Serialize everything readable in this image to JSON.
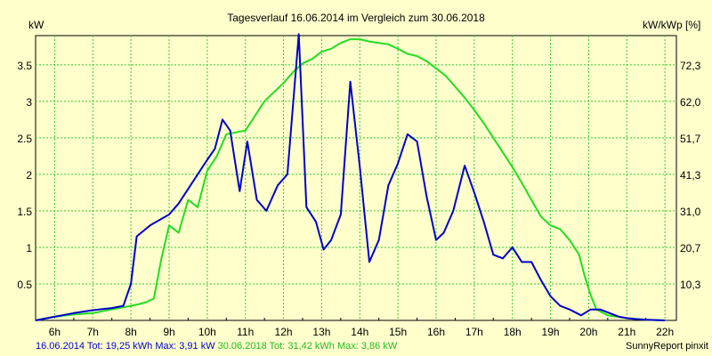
{
  "chart_data": {
    "type": "line",
    "title": "Tagesverlauf 16.06.2014 im Vergleich zum 30.06.2018",
    "ylabel_left": "kW",
    "ylabel_right": "kW/kWp [%]",
    "x_tick_labels": [
      "6h",
      "7h",
      "8h",
      "9h",
      "10h",
      "11h",
      "12h",
      "13h",
      "14h",
      "15h",
      "16h",
      "17h",
      "18h",
      "19h",
      "20h",
      "21h",
      "22h"
    ],
    "xlim": [
      5.5,
      22.3
    ],
    "ylim_left": [
      0,
      3.9
    ],
    "y_ticks_left": [
      0.5,
      1,
      1.5,
      2,
      2.5,
      3,
      3.5
    ],
    "y_tick_labels_left": [
      "0.5",
      "1",
      "1.5",
      "2",
      "2.5",
      "3",
      "3.5"
    ],
    "y_tick_labels_right": [
      "10,3",
      "20,7",
      "31,0",
      "41,3",
      "51,7",
      "62,0",
      "72,3"
    ],
    "grid": true,
    "colors": {
      "background": "#ffffcc",
      "grid": "#33cc33",
      "series_2014": "#0000cc",
      "series_2018": "#22dd22"
    },
    "series": [
      {
        "name": "16.06.2014",
        "x": [
          5.5,
          6.0,
          6.5,
          7.0,
          7.5,
          7.8,
          8.0,
          8.15,
          8.5,
          9.0,
          9.25,
          9.5,
          9.75,
          10.0,
          10.2,
          10.4,
          10.6,
          10.85,
          11.05,
          11.3,
          11.55,
          11.85,
          12.1,
          12.4,
          12.6,
          12.85,
          13.05,
          13.25,
          13.5,
          13.75,
          14.0,
          14.25,
          14.5,
          14.75,
          15.0,
          15.25,
          15.5,
          15.75,
          16.0,
          16.2,
          16.45,
          16.75,
          17.0,
          17.25,
          17.5,
          17.75,
          18.0,
          18.25,
          18.5,
          18.75,
          19.0,
          19.25,
          19.5,
          19.8,
          20.05,
          20.3,
          20.55,
          20.8,
          21.0,
          21.2,
          21.5,
          22.0
        ],
        "values": [
          0.0,
          0.05,
          0.1,
          0.14,
          0.17,
          0.2,
          0.5,
          1.15,
          1.3,
          1.45,
          1.6,
          1.8,
          2.0,
          2.2,
          2.35,
          2.75,
          2.6,
          1.77,
          2.45,
          1.65,
          1.5,
          1.85,
          2.0,
          3.92,
          1.55,
          1.35,
          0.97,
          1.1,
          1.45,
          3.27,
          2.1,
          0.8,
          1.1,
          1.85,
          2.15,
          2.55,
          2.45,
          1.7,
          1.1,
          1.2,
          1.5,
          2.12,
          1.75,
          1.35,
          0.9,
          0.85,
          1.0,
          0.8,
          0.8,
          0.55,
          0.33,
          0.2,
          0.15,
          0.07,
          0.15,
          0.15,
          0.1,
          0.05,
          0.03,
          0.02,
          0.01,
          0.0
        ]
      },
      {
        "name": "30.06.2018",
        "x": [
          5.5,
          6.0,
          6.5,
          7.0,
          7.5,
          8.0,
          8.2,
          8.4,
          8.6,
          8.8,
          9.0,
          9.25,
          9.5,
          9.75,
          10.0,
          10.25,
          10.5,
          11.0,
          11.5,
          12.0,
          12.25,
          12.5,
          12.75,
          13.0,
          13.25,
          13.5,
          13.75,
          14.0,
          14.25,
          14.5,
          14.75,
          15.0,
          15.25,
          15.5,
          15.75,
          16.0,
          16.25,
          16.5,
          16.75,
          17.0,
          17.25,
          17.5,
          17.75,
          18.0,
          18.25,
          18.5,
          18.75,
          19.0,
          19.25,
          19.5,
          19.75,
          19.9,
          20.05,
          20.2,
          20.5,
          21.0,
          21.5,
          22.0
        ],
        "values": [
          0.0,
          0.05,
          0.08,
          0.1,
          0.15,
          0.2,
          0.22,
          0.25,
          0.3,
          0.85,
          1.3,
          1.2,
          1.65,
          1.55,
          2.05,
          2.25,
          2.55,
          2.6,
          3.0,
          3.25,
          3.4,
          3.52,
          3.58,
          3.68,
          3.72,
          3.8,
          3.85,
          3.85,
          3.82,
          3.8,
          3.78,
          3.72,
          3.65,
          3.62,
          3.55,
          3.45,
          3.35,
          3.2,
          3.05,
          2.88,
          2.7,
          2.5,
          2.3,
          2.1,
          1.88,
          1.65,
          1.42,
          1.3,
          1.25,
          1.1,
          0.9,
          0.6,
          0.35,
          0.15,
          0.07,
          0.03,
          0.01,
          0.0
        ]
      }
    ]
  },
  "footer": {
    "series_2014_text": "16.06.2014 Tot: 19,25 kWh Max: 3,91 kW",
    "series_2018_text": "30.06.2018 Tot: 31,42 kWh Max: 3,86 kW",
    "brand": "SunnyReport pinxit"
  }
}
